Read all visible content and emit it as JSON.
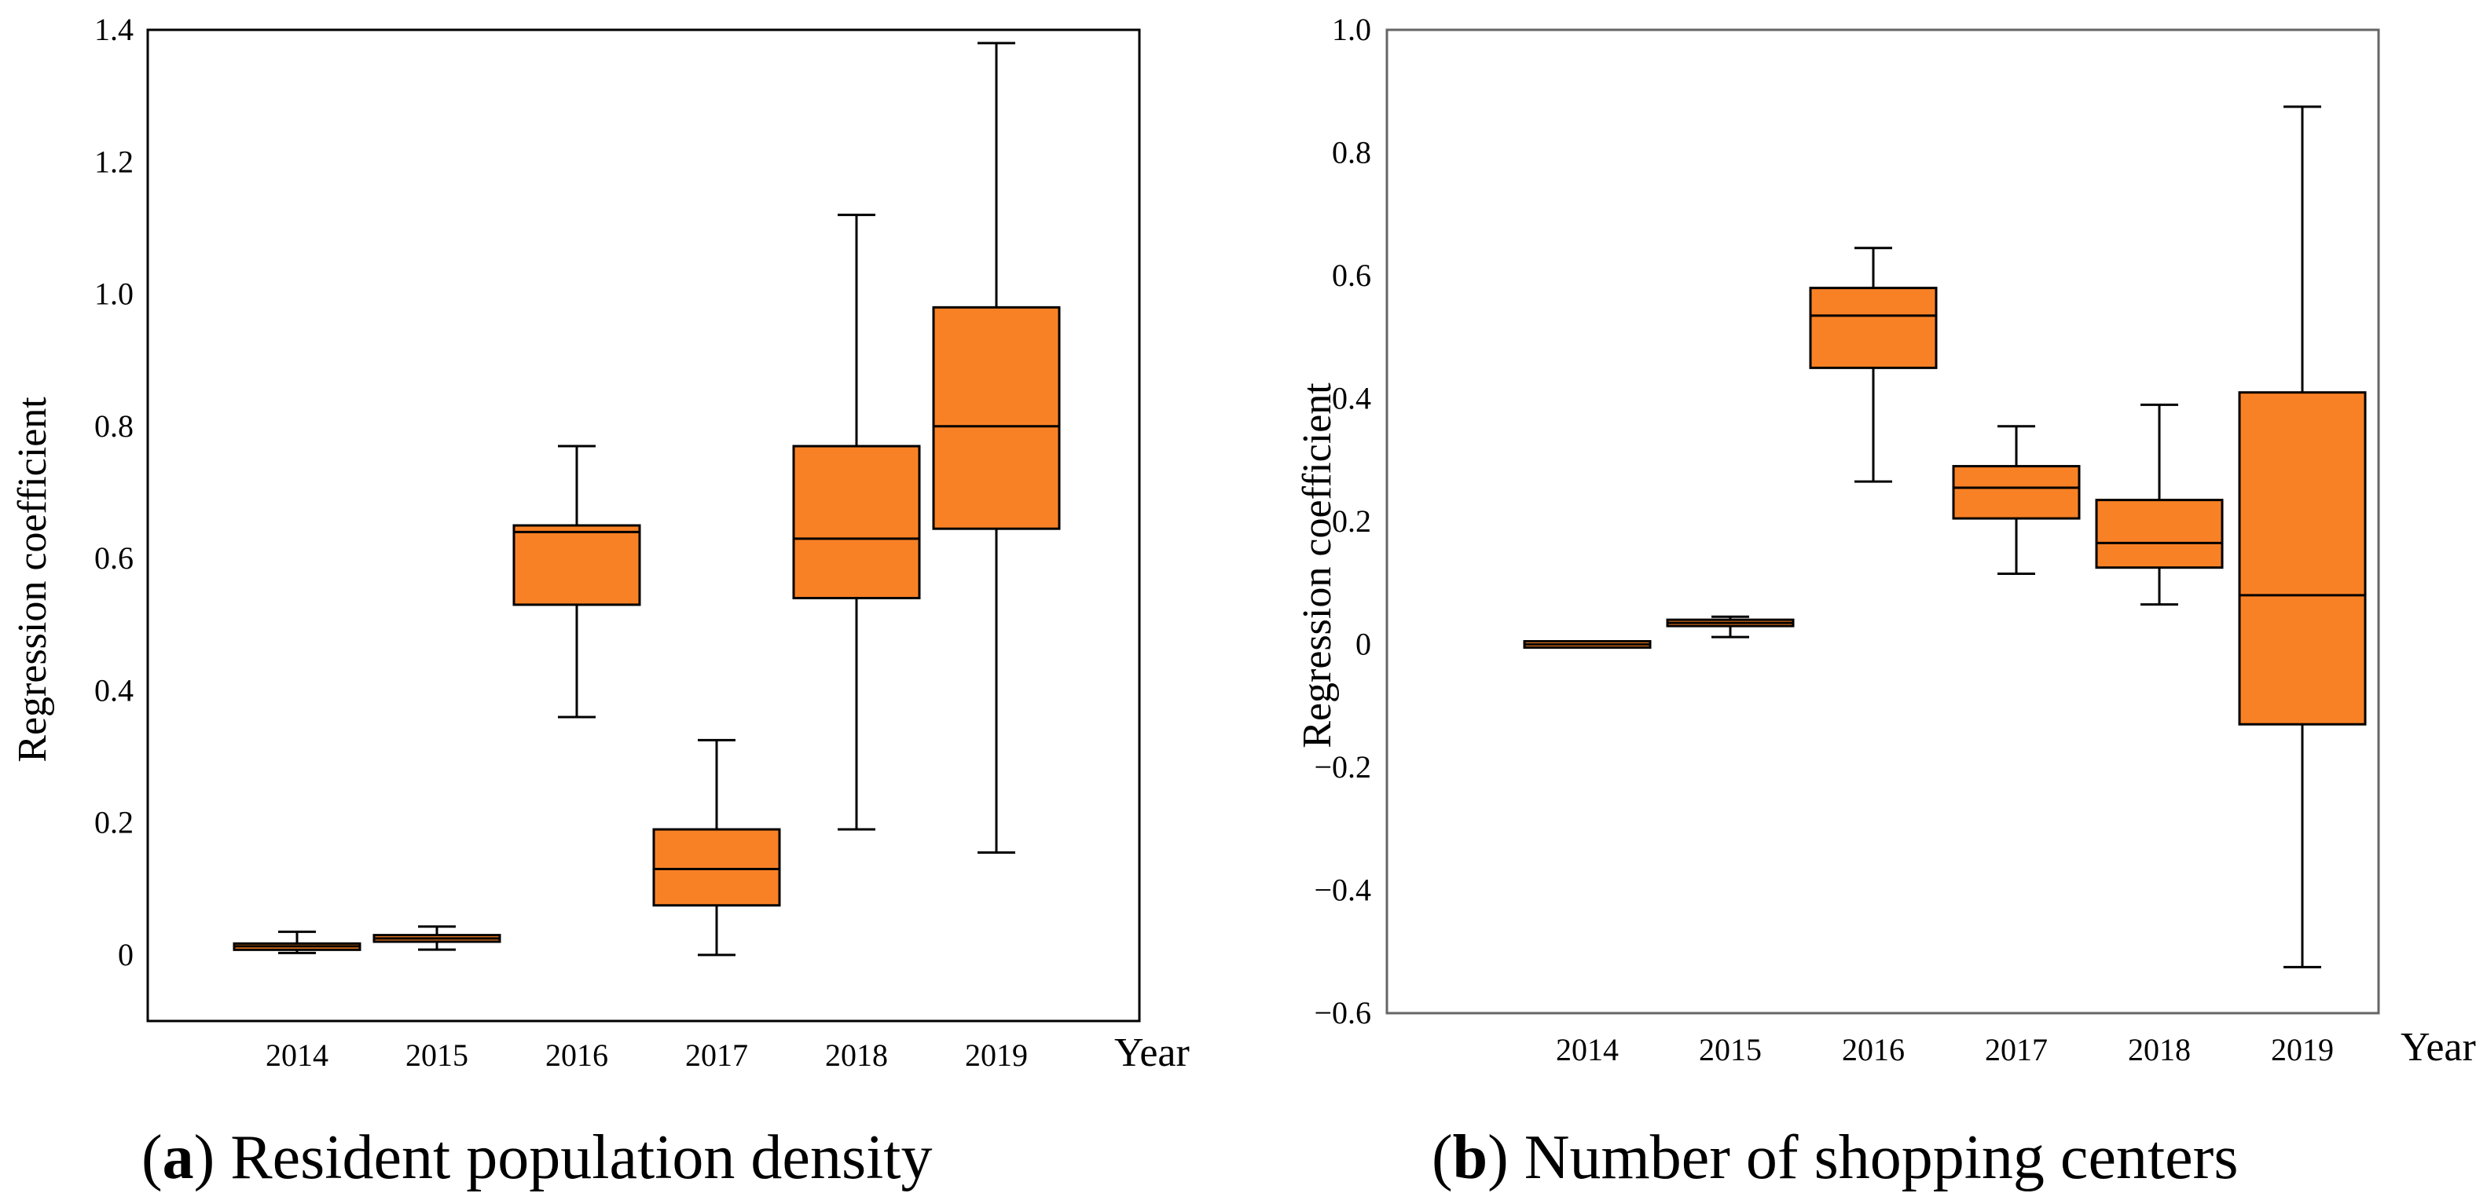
{
  "chart_data": [
    {
      "type": "box",
      "caption_letter": "a",
      "caption_text": "Resident population density",
      "ylabel": "Regression coefficient",
      "xlabel": "Year",
      "ylim": [
        -0.1,
        1.4
      ],
      "ytick_values": [
        0,
        0.2,
        0.4,
        0.6,
        0.8,
        1.0,
        1.2,
        1.4
      ],
      "ytick_labels": [
        "0",
        "0.2",
        "0.4",
        "0.6",
        "0.8",
        "1.0",
        "1.2",
        "1.4"
      ],
      "categories": [
        "2014",
        "2015",
        "2016",
        "2017",
        "2018",
        "2019"
      ],
      "boxes": [
        {
          "min": 0.003,
          "q1": 0.008,
          "median": 0.013,
          "q3": 0.017,
          "max": 0.035
        },
        {
          "min": 0.008,
          "q1": 0.02,
          "median": 0.025,
          "q3": 0.03,
          "max": 0.043
        },
        {
          "min": 0.36,
          "q1": 0.53,
          "median": 0.64,
          "q3": 0.65,
          "max": 0.77
        },
        {
          "min": 0.0,
          "q1": 0.075,
          "median": 0.13,
          "q3": 0.19,
          "max": 0.325
        },
        {
          "min": 0.19,
          "q1": 0.54,
          "median": 0.63,
          "q3": 0.77,
          "max": 1.12
        },
        {
          "min": 0.155,
          "q1": 0.645,
          "median": 0.8,
          "q3": 0.98,
          "max": 1.38
        }
      ],
      "box_color": "#F98125",
      "grid": false,
      "legend": "none"
    },
    {
      "type": "box",
      "caption_letter": "b",
      "caption_text": "Number of shopping centers",
      "ylabel": "Regression coefficient",
      "xlabel": "Year",
      "ylim": [
        -0.6,
        1.0
      ],
      "ytick_values": [
        -0.6,
        -0.4,
        -0.2,
        0,
        0.2,
        0.4,
        0.6,
        0.8,
        1.0
      ],
      "ytick_labels": [
        "−0.6",
        "−0.4",
        "−0.2",
        "0",
        "0.2",
        "0.4",
        "0.6",
        "0.8",
        "1.0"
      ],
      "categories": [
        "2014",
        "2015",
        "2016",
        "2017",
        "2018",
        "2019"
      ],
      "boxes": [
        {
          "min": -0.004,
          "q1": -0.002,
          "median": 0.0,
          "q3": 0.002,
          "max": 0.004
        },
        {
          "min": 0.012,
          "q1": 0.03,
          "median": 0.035,
          "q3": 0.04,
          "max": 0.045
        },
        {
          "min": 0.265,
          "q1": 0.45,
          "median": 0.535,
          "q3": 0.58,
          "max": 0.645
        },
        {
          "min": 0.115,
          "q1": 0.205,
          "median": 0.255,
          "q3": 0.29,
          "max": 0.355
        },
        {
          "min": 0.065,
          "q1": 0.125,
          "median": 0.165,
          "q3": 0.235,
          "max": 0.39
        },
        {
          "min": -0.525,
          "q1": -0.13,
          "median": 0.08,
          "q3": 0.41,
          "max": 0.875
        }
      ],
      "box_color": "#F98125",
      "grid": false,
      "legend": "none"
    }
  ]
}
